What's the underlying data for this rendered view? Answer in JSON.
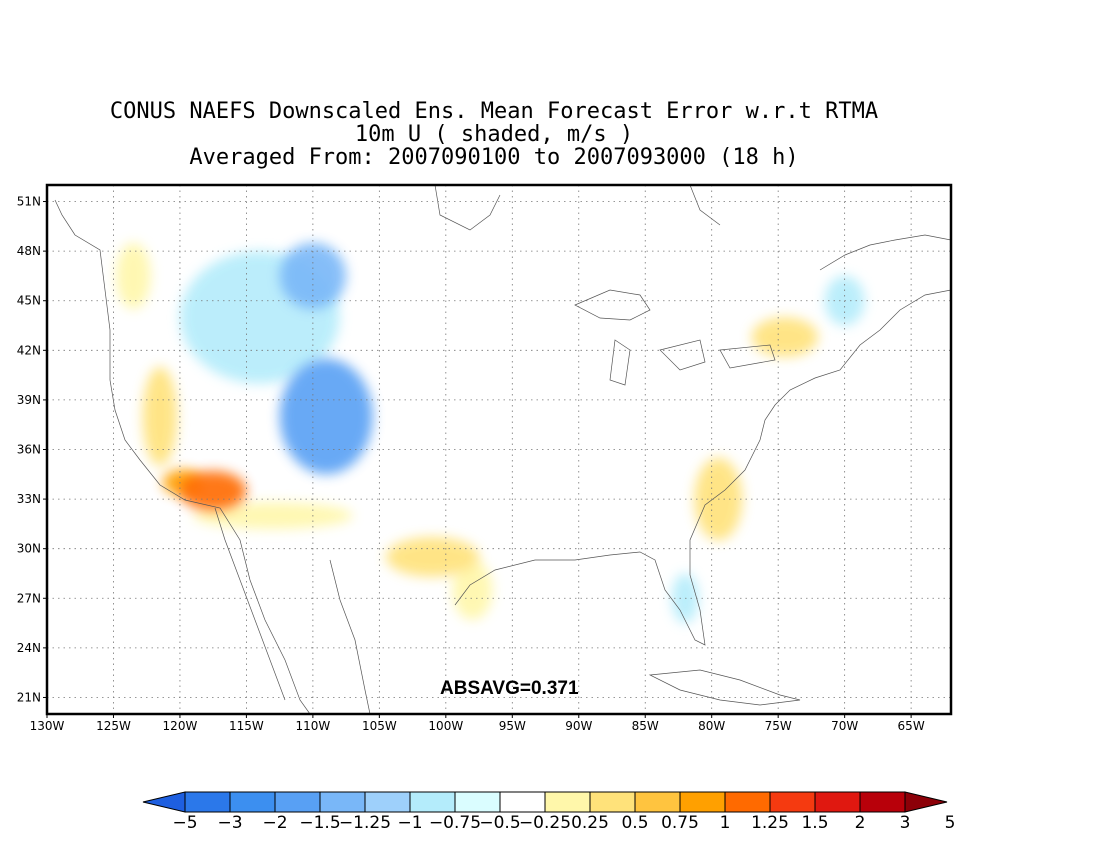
{
  "title": {
    "line1": "CONUS NAEFS Downscaled Ens. Mean Forecast Error w.r.t RTMA",
    "line2": "10m U ( shaded, m/s )",
    "line3": "Averaged From: 2007090100 to 2007093000 (18 h)"
  },
  "annotation": "ABSAVG=0.371",
  "axes": {
    "lon_ticks": [
      "130W",
      "125W",
      "120W",
      "115W",
      "110W",
      "105W",
      "100W",
      "95W",
      "90W",
      "85W",
      "80W",
      "75W",
      "70W",
      "65W"
    ],
    "lat_ticks": [
      "51N",
      "48N",
      "45N",
      "42N",
      "39N",
      "36N",
      "33N",
      "30N",
      "27N",
      "24N",
      "21N"
    ],
    "lon_range": [
      -130,
      -62
    ],
    "lat_range": [
      20,
      52
    ],
    "grid": "dotted"
  },
  "colorbar": {
    "labels": [
      "-5",
      "-3",
      "-2",
      "-1.5",
      "-1.25",
      "-1",
      "-0.75",
      "-0.5",
      "-0.25",
      "0.25",
      "0.5",
      "0.75",
      "1",
      "1.25",
      "1.5",
      "2",
      "3",
      "5"
    ],
    "colors": [
      "#1e5fe0",
      "#2b78ea",
      "#3c8ff0",
      "#58a0f4",
      "#79b7f8",
      "#9ed0fb",
      "#b4ecfb",
      "#dafdff",
      "#ffffff",
      "#fff7aa",
      "#ffe27a",
      "#ffc43f",
      "#ffa000",
      "#ff6a00",
      "#f53a10",
      "#e01810",
      "#b8000a",
      "#8c0008"
    ]
  },
  "chart_data": {
    "type": "heatmap",
    "variable": "10m U ( shaded, m/s )",
    "annotation": "ABSAVG=0.371",
    "regions": [
      {
        "lon": -117.5,
        "lat": 33.5,
        "value": 1.5,
        "rx": 2.5,
        "ry": 1.2
      },
      {
        "lon": -119.8,
        "lat": 34.0,
        "value": 1.25,
        "rx": 1.5,
        "ry": 0.8
      },
      {
        "lon": -121.5,
        "lat": 38.0,
        "value": 0.75,
        "rx": 1.3,
        "ry": 3.0
      },
      {
        "lon": -123.5,
        "lat": 46.5,
        "value": 0.5,
        "rx": 1.3,
        "ry": 2.0
      },
      {
        "lon": -113.0,
        "lat": 32.0,
        "value": 0.5,
        "rx": 6.0,
        "ry": 0.8
      },
      {
        "lon": -109.0,
        "lat": 38.0,
        "value": -1.25,
        "rx": 3.5,
        "ry": 3.5
      },
      {
        "lon": -110.0,
        "lat": 46.5,
        "value": -1.0,
        "rx": 2.5,
        "ry": 2.0
      },
      {
        "lon": -114.0,
        "lat": 44.0,
        "value": -0.5,
        "rx": 6.0,
        "ry": 4.0
      },
      {
        "lon": -101.0,
        "lat": 29.5,
        "value": 0.75,
        "rx": 3.5,
        "ry": 1.2
      },
      {
        "lon": -98.0,
        "lat": 27.5,
        "value": 0.5,
        "rx": 1.5,
        "ry": 1.8
      },
      {
        "lon": -79.5,
        "lat": 33.0,
        "value": 0.75,
        "rx": 1.8,
        "ry": 2.5
      },
      {
        "lon": -74.5,
        "lat": 42.8,
        "value": 0.75,
        "rx": 2.5,
        "ry": 1.2
      },
      {
        "lon": -82.0,
        "lat": 27.0,
        "value": -0.5,
        "rx": 1.0,
        "ry": 1.5
      },
      {
        "lon": -92.0,
        "lat": 42.0,
        "value": -0.25,
        "rx": 8.0,
        "ry": 4.0
      },
      {
        "lon": -70.0,
        "lat": 45.0,
        "value": -0.5,
        "rx": 1.5,
        "ry": 1.5
      }
    ]
  }
}
